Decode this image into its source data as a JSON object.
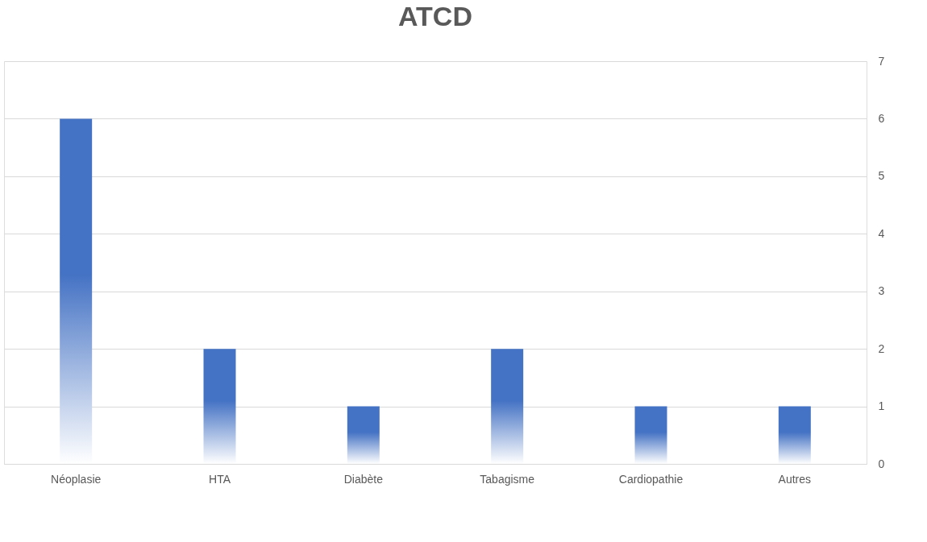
{
  "chart_data": {
    "type": "bar",
    "title": "ATCD",
    "categories": [
      "Néoplasie",
      "HTA",
      "Diabète",
      "Tabagisme",
      "Cardiopathie",
      "Autres"
    ],
    "values": [
      6,
      2,
      1,
      2,
      1,
      1
    ],
    "color": "#4472c4",
    "ylim": [
      0,
      7
    ],
    "yticks": [
      0,
      1,
      2,
      3,
      4,
      5,
      6,
      7
    ],
    "grid": true
  }
}
